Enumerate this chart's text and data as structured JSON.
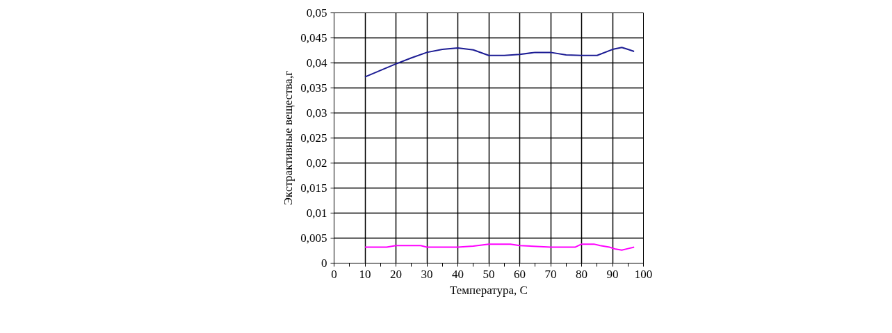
{
  "chart_data": {
    "type": "line",
    "xlabel": "Температура, С",
    "ylabel": "Экстрактивные вещества,г",
    "xlim": [
      0,
      100
    ],
    "ylim": [
      0,
      0.05
    ],
    "xticks": [
      0,
      {
        "value": 5,
        "label": null
      },
      10,
      {
        "value": 15,
        "label": null
      },
      20,
      {
        "value": 25,
        "label": null
      },
      30,
      {
        "value": 35,
        "label": null
      },
      40,
      {
        "value": 45,
        "label": null
      },
      50,
      {
        "value": 55,
        "label": null
      },
      60,
      {
        "value": 65,
        "label": null
      },
      70,
      {
        "value": 75,
        "label": null
      },
      80,
      {
        "value": 85,
        "label": null
      },
      90,
      {
        "value": 95,
        "label": null
      },
      100
    ],
    "yticks": [
      0,
      {
        "value": 0.005,
        "label": "0,005"
      },
      {
        "value": 0.01,
        "label": "0,01"
      },
      {
        "value": 0.015,
        "label": "0,015"
      },
      {
        "value": 0.02,
        "label": "0,02"
      },
      {
        "value": 0.025,
        "label": "0,025"
      },
      {
        "value": 0.03,
        "label": "0,03"
      },
      {
        "value": 0.035,
        "label": "0,035"
      },
      {
        "value": 0.04,
        "label": "0,04"
      },
      {
        "value": 0.045,
        "label": "0,045"
      },
      {
        "value": 0.05,
        "label": "0,05"
      }
    ],
    "grid": true,
    "line_style": "solid",
    "series": [
      {
        "color": "#1c1c94",
        "x": [
          10,
          20,
          25,
          30,
          35,
          40,
          45,
          50,
          55,
          60,
          65,
          70,
          75,
          80,
          85,
          90,
          93,
          95,
          97
        ],
        "values": [
          0.0372,
          0.0398,
          0.041,
          0.0421,
          0.0427,
          0.043,
          0.0426,
          0.0415,
          0.0415,
          0.0417,
          0.0421,
          0.0421,
          0.0416,
          0.0415,
          0.0415,
          0.0427,
          0.0431,
          0.0427,
          0.0423
        ]
      },
      {
        "color": "#ff00ff",
        "x": [
          10,
          17,
          20,
          28,
          30,
          40,
          45,
          50,
          57,
          60,
          70,
          78,
          80,
          84,
          86,
          89,
          91,
          93,
          95,
          97
        ],
        "values": [
          0.0032,
          0.0032,
          0.0035,
          0.0035,
          0.0032,
          0.0032,
          0.0034,
          0.0038,
          0.0038,
          0.0035,
          0.0032,
          0.0032,
          0.0038,
          0.0038,
          0.0035,
          0.0032,
          0.0028,
          0.0026,
          0.0029,
          0.0032
        ]
      }
    ]
  }
}
